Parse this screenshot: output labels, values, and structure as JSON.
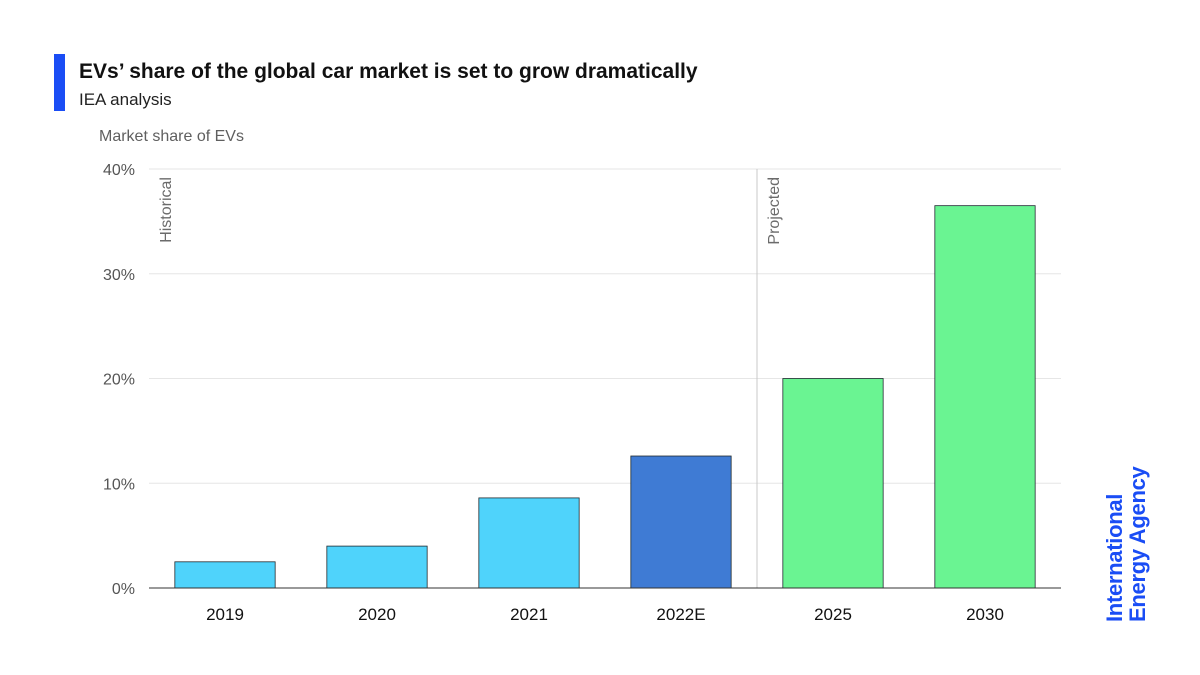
{
  "header": {
    "title": "EVs’ share of the global car market is set to grow dramatically",
    "subtitle": "IEA analysis"
  },
  "branding": {
    "logo_line1": "International",
    "logo_line2": "Energy Agency",
    "logo_color": "#1a4df5",
    "accent_color": "#1a4df5"
  },
  "chart_data": {
    "type": "bar",
    "title": "EVs’ share of the global car market is set to grow dramatically",
    "subtitle": "IEA analysis",
    "ylabel": "Market share of EVs",
    "xlabel": "",
    "categories": [
      "2019",
      "2020",
      "2021",
      "2022E",
      "2025",
      "2030"
    ],
    "values": [
      2.5,
      4,
      8.6,
      12.6,
      20,
      36.5
    ],
    "bar_colors": [
      "#4fd3fb",
      "#4fd3fb",
      "#4fd3fb",
      "#3f7bd4",
      "#6af492",
      "#6af492"
    ],
    "ylim": [
      0,
      40
    ],
    "yticks": [
      0,
      10,
      20,
      30,
      40
    ],
    "ytick_labels": [
      "0%",
      "10%",
      "20%",
      "30%",
      "40%"
    ],
    "grid": true,
    "annotations": [
      {
        "text": "Historical",
        "from_category": "2019"
      },
      {
        "text": "Projected",
        "from_category": "2025",
        "divider": true
      }
    ]
  }
}
